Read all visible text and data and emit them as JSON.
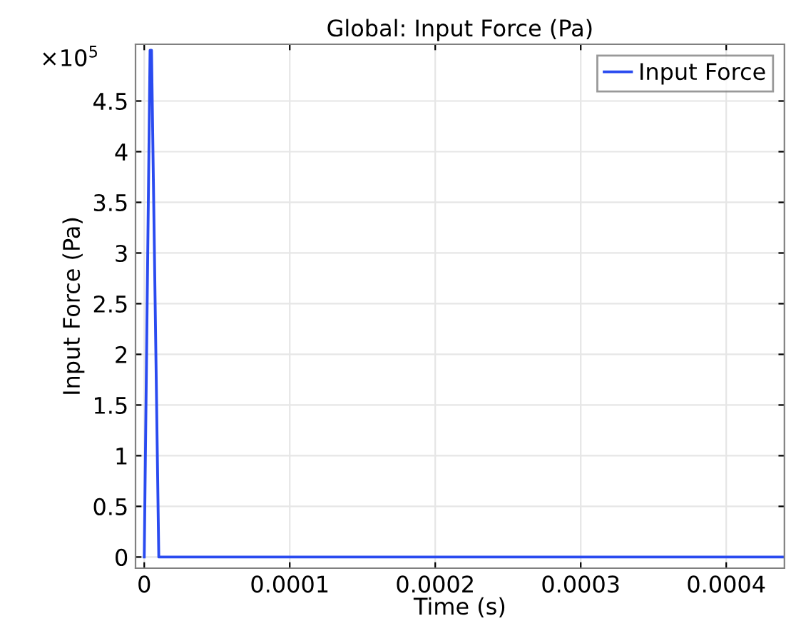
{
  "chart_data": {
    "type": "line",
    "title": "Global: Input Force (Pa)",
    "xlabel": "Time (s)",
    "ylabel": "Input Force (Pa)",
    "x": [
      0,
      4e-06,
      5e-06,
      1e-05,
      0.00044
    ],
    "series": [
      {
        "name": "Input Force",
        "color": "#2a4bf0",
        "values": [
          0,
          5,
          5,
          0,
          0
        ]
      }
    ],
    "xlim": [
      -6e-06,
      0.00044
    ],
    "xticks": [
      0,
      0.0001,
      0.0002,
      0.0003,
      0.0004
    ],
    "ylim": [
      -0.11,
      5.06
    ],
    "yticks": [
      0,
      0.5,
      1,
      1.5,
      2,
      2.5,
      3,
      3.5,
      4,
      4.5
    ],
    "annotations": [
      "×10$^{5}$"
    ],
    "grid": true,
    "legend": "top right",
    "marker": "none",
    "line_style": "solid"
  }
}
